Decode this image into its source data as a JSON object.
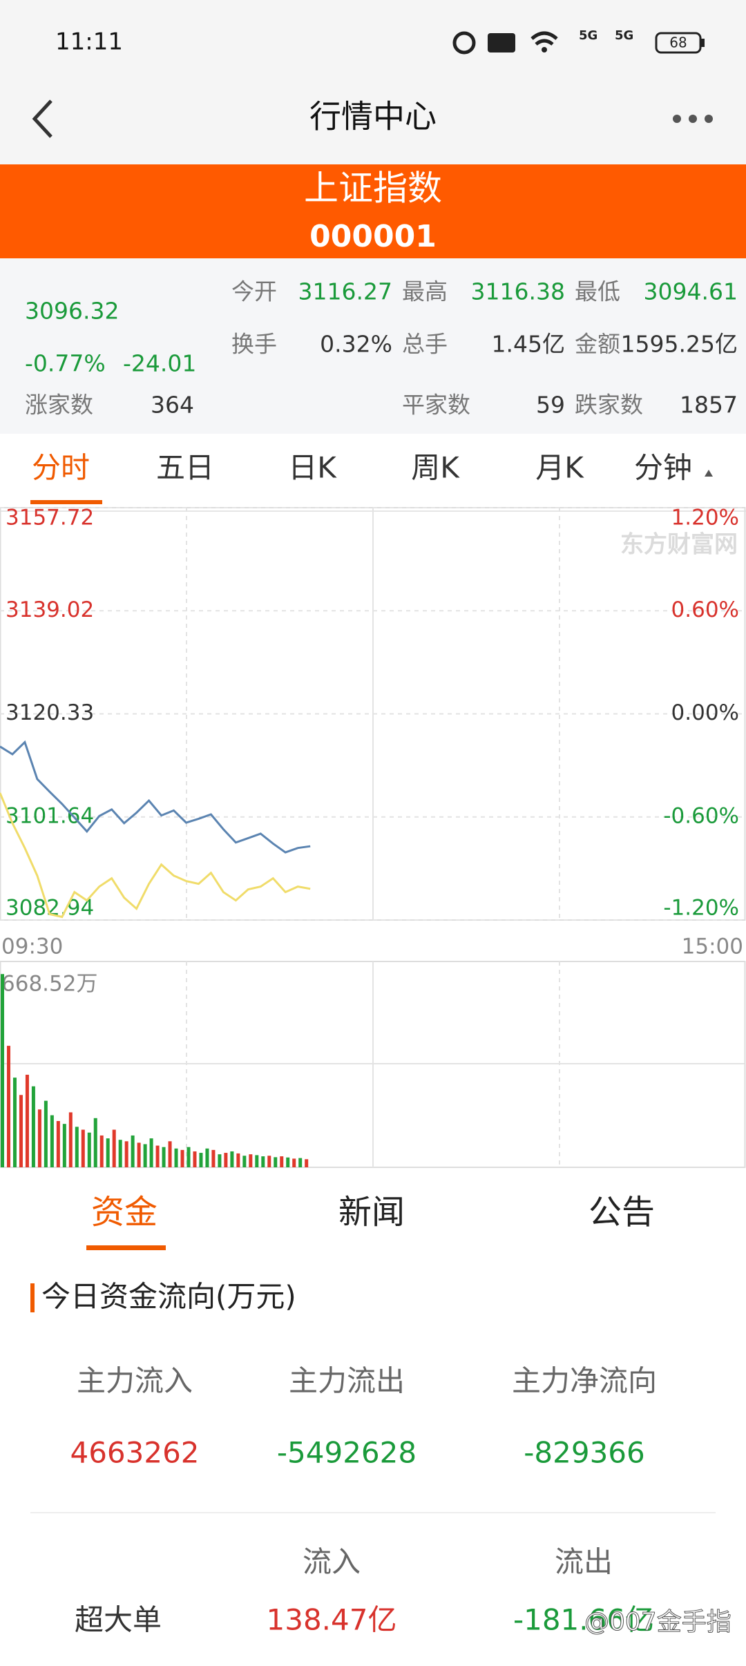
{
  "status_bar": {
    "time": "11:11",
    "network": [
      "5G",
      "5G"
    ],
    "battery": "68"
  },
  "header": {
    "title": "行情中心"
  },
  "banner": {
    "name": "上证指数",
    "code": "000001"
  },
  "quote": {
    "price": "3096.32",
    "change_pct": "-0.77%",
    "change": "-24.01",
    "advancers": {
      "label": "涨家数",
      "value": "364"
    },
    "stats": [
      [
        {
          "label": "今开",
          "value": "3116.27",
          "color": "#1a9a3a"
        },
        {
          "label": "最高",
          "value": "3116.38",
          "color": "#1a9a3a"
        },
        {
          "label": "最低",
          "value": "3094.61",
          "color": "#1a9a3a"
        }
      ],
      [
        {
          "label": "换手",
          "value": "0.32%",
          "color": "#333333"
        },
        {
          "label": "总手",
          "value": "1.45亿",
          "color": "#333333"
        },
        {
          "label": "金额",
          "value": "1595.25亿",
          "color": "#333333"
        }
      ],
      [
        {
          "label": "平家数",
          "value": "59",
          "color": "#333333"
        },
        {
          "label": "跌家数",
          "value": "1857",
          "color": "#333333"
        }
      ]
    ]
  },
  "chart_tabs": [
    "分时",
    "五日",
    "日K",
    "周K",
    "月K",
    "分钟"
  ],
  "chart_data": [
    {
      "type": "line",
      "x": [
        0,
        4,
        8,
        12,
        16,
        20,
        24,
        28,
        32,
        36,
        40,
        44,
        48,
        52,
        56,
        60,
        64,
        68,
        72,
        76,
        80,
        84,
        88,
        92,
        96,
        100
      ],
      "xlim": [
        0,
        240
      ],
      "xticks": [
        {
          "value": 0,
          "label": "09:30"
        },
        {
          "value": 240,
          "label": "15:00"
        }
      ],
      "ylim": [
        3082.94,
        3157.72
      ],
      "yticks": [
        3157.72,
        3139.02,
        3120.33,
        3101.64,
        3082.94
      ],
      "y2lim": [
        -1.2,
        1.2
      ],
      "y2ticks": [
        {
          "value": 1.2,
          "label": "1.20%"
        },
        {
          "value": 0.6,
          "label": "0.60%"
        },
        {
          "value": 0,
          "label": "0.00%"
        },
        {
          "value": -0.6,
          "label": "-0.60%"
        },
        {
          "value": -1.2,
          "label": "-1.20%"
        }
      ],
      "grid": true,
      "series": [
        {
          "color": "#5b84b1",
          "values": [
            3114.4,
            3113.0,
            3115.2,
            3108.5,
            3106.2,
            3104.0,
            3101.5,
            3099.0,
            3101.8,
            3103.0,
            3100.5,
            3102.4,
            3104.6,
            3101.9,
            3102.8,
            3100.6,
            3101.3,
            3102.1,
            3099.4,
            3097.0,
            3097.8,
            3098.6,
            3096.8,
            3095.2,
            3096.0,
            3096.32
          ]
        },
        {
          "color": "#f0dc6a",
          "values": [
            3106.0,
            3100.5,
            3096.0,
            3091.0,
            3084.0,
            3083.5,
            3088.0,
            3086.5,
            3089.0,
            3090.5,
            3087.0,
            3085.0,
            3089.5,
            3093.0,
            3091.0,
            3090.0,
            3089.5,
            3091.5,
            3088.0,
            3086.5,
            3088.5,
            3089.0,
            3090.5,
            3088.0,
            3089.0,
            3088.6
          ]
        }
      ]
    },
    {
      "type": "bar",
      "x": [
        0,
        2,
        4,
        6,
        8,
        10,
        12,
        14,
        16,
        18,
        20,
        22,
        24,
        26,
        28,
        30,
        32,
        34,
        36,
        38,
        40,
        42,
        44,
        46,
        48,
        50,
        52,
        54,
        56,
        58,
        60,
        62,
        64,
        66,
        68,
        70,
        72,
        74,
        76,
        78,
        80,
        82,
        84,
        86,
        88,
        90,
        92,
        94,
        96,
        98
      ],
      "xlim": [
        0,
        240
      ],
      "ylim": [
        0,
        668.52
      ],
      "yticks": [
        {
          "value": 668.52,
          "label": "668.52万"
        }
      ],
      "values": [
        668,
        420,
        310,
        250,
        320,
        280,
        200,
        230,
        180,
        160,
        150,
        190,
        140,
        130,
        120,
        170,
        110,
        100,
        130,
        95,
        90,
        110,
        85,
        80,
        100,
        75,
        70,
        90,
        65,
        60,
        70,
        55,
        50,
        65,
        60,
        45,
        50,
        55,
        48,
        40,
        45,
        42,
        38,
        40,
        35,
        38,
        34,
        30,
        32,
        28
      ],
      "colors": [
        "#22a33a",
        "#e0392b",
        "#22a33a",
        "#e0392b",
        "#e0392b",
        "#22a33a",
        "#e0392b",
        "#22a33a",
        "#22a33a",
        "#e0392b",
        "#22a33a",
        "#e0392b",
        "#22a33a",
        "#e0392b",
        "#22a33a",
        "#22a33a",
        "#e0392b",
        "#22a33a",
        "#e0392b",
        "#22a33a",
        "#e0392b",
        "#22a33a",
        "#e0392b",
        "#22a33a",
        "#22a33a",
        "#e0392b",
        "#22a33a",
        "#e0392b",
        "#22a33a",
        "#e0392b",
        "#22a33a",
        "#e0392b",
        "#22a33a",
        "#22a33a",
        "#e0392b",
        "#22a33a",
        "#e0392b",
        "#22a33a",
        "#e0392b",
        "#22a33a",
        "#e0392b",
        "#22a33a",
        "#22a33a",
        "#e0392b",
        "#22a33a",
        "#e0392b",
        "#22a33a",
        "#e0392b",
        "#22a33a",
        "#e0392b"
      ]
    }
  ],
  "info_tabs": [
    "资金",
    "新闻",
    "公告"
  ],
  "fund_flow": {
    "title": "今日资金流向(万元)",
    "summary": [
      {
        "label": "主力流入",
        "value": "4663262",
        "color": "#d8322c"
      },
      {
        "label": "主力流出",
        "value": "-5492628",
        "color": "#1a9a3a"
      },
      {
        "label": "主力净流向",
        "value": "-829366",
        "color": "#1a9a3a"
      }
    ],
    "columns": [
      "流入",
      "流出"
    ],
    "rows": [
      {
        "label": "超大单",
        "inflow": "138.47亿",
        "outflow": "-181.66亿"
      }
    ]
  },
  "watermark": "@007金手指"
}
